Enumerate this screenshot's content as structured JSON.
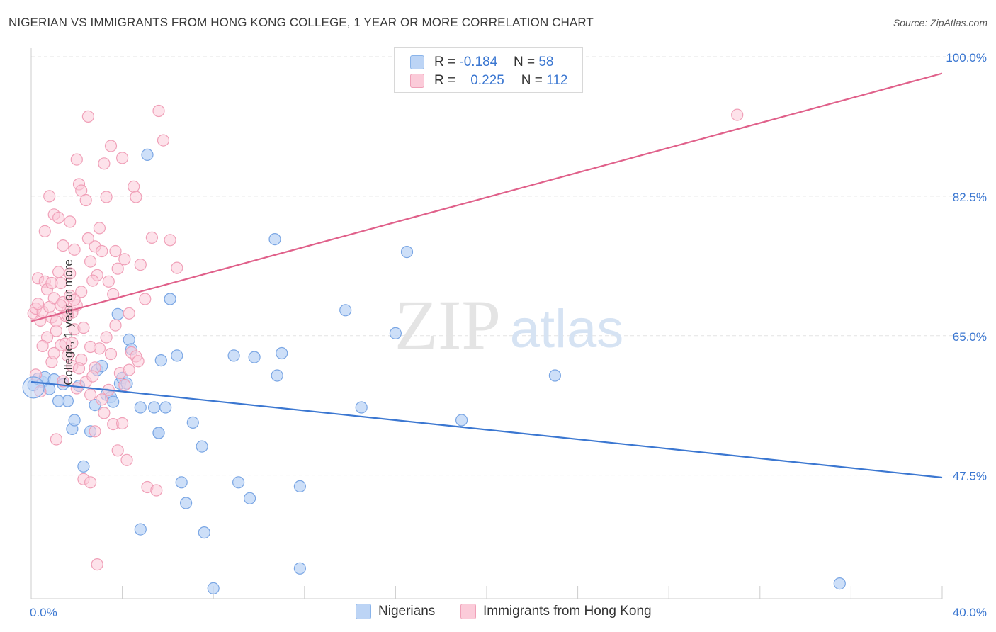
{
  "title": "NIGERIAN VS IMMIGRANTS FROM HONG KONG COLLEGE, 1 YEAR OR MORE CORRELATION CHART",
  "source": "Source: ZipAtlas.com",
  "watermark": {
    "zip": "ZIP",
    "atlas": "atlas"
  },
  "legend_top": {
    "rows": [
      {
        "r_label": "R =",
        "r_value": "-0.184",
        "n_label": "N =",
        "n_value": "58",
        "color": "#8ab4ea",
        "fill": "#bcd4f5"
      },
      {
        "r_label": "R =",
        "r_value": "0.225",
        "n_label": "N =",
        "n_value": "112",
        "color": "#f0a0b8",
        "fill": "#fbcbd9"
      }
    ]
  },
  "legend_bottom": [
    {
      "label": "Nigerians",
      "fill": "#bcd4f5",
      "color": "#8ab4ea"
    },
    {
      "label": "Immigrants from Hong Kong",
      "fill": "#fbcbd9",
      "color": "#f0a0b8"
    }
  ],
  "chart_data": {
    "type": "scatter",
    "title": "NIGERIAN VS IMMIGRANTS FROM HONG KONG COLLEGE, 1 YEAR OR MORE CORRELATION CHART",
    "xlabel": "",
    "ylabel": "College, 1 year or more",
    "xlim": [
      0,
      40
    ],
    "ylim": [
      32,
      100
    ],
    "x_tick_labels": [
      {
        "value": 0,
        "label": "0.0%"
      },
      {
        "value": 40,
        "label": "40.0%"
      }
    ],
    "y_tick_labels": [
      {
        "value": 100,
        "label": "100.0%"
      },
      {
        "value": 82.5,
        "label": "82.5%"
      },
      {
        "value": 65,
        "label": "65.0%"
      },
      {
        "value": 47.5,
        "label": "47.5%"
      }
    ],
    "grid": true,
    "series": [
      {
        "name": "Nigerians",
        "color": "#3b77d1",
        "fill": "#bcd4f5",
        "stroke": "#7aa6e4",
        "trend": {
          "x": [
            0,
            40
          ],
          "y": [
            59.2,
            47.2
          ]
        },
        "points": [
          [
            0.1,
            58.8
          ],
          [
            0.3,
            59.6
          ],
          [
            0.5,
            59.2
          ],
          [
            0.6,
            59.8
          ],
          [
            0.8,
            58.3
          ],
          [
            1.0,
            59.5
          ],
          [
            1.4,
            58.9
          ],
          [
            1.6,
            56.8
          ],
          [
            1.8,
            53.3
          ],
          [
            1.9,
            54.4
          ],
          [
            2.1,
            58.7
          ],
          [
            2.3,
            48.6
          ],
          [
            2.6,
            53.0
          ],
          [
            2.8,
            56.3
          ],
          [
            2.9,
            60.7
          ],
          [
            3.1,
            61.2
          ],
          [
            3.3,
            57.6
          ],
          [
            3.5,
            57.3
          ],
          [
            3.6,
            56.7
          ],
          [
            3.8,
            67.7
          ],
          [
            3.9,
            59.0
          ],
          [
            4.0,
            59.7
          ],
          [
            4.2,
            59.0
          ],
          [
            4.3,
            64.5
          ],
          [
            4.4,
            63.3
          ],
          [
            4.8,
            56.0
          ],
          [
            5.1,
            87.7
          ],
          [
            5.4,
            56.0
          ],
          [
            5.6,
            52.8
          ],
          [
            5.7,
            61.9
          ],
          [
            5.9,
            56.0
          ],
          [
            6.1,
            69.6
          ],
          [
            6.4,
            62.5
          ],
          [
            6.6,
            46.6
          ],
          [
            6.8,
            44.0
          ],
          [
            7.1,
            54.1
          ],
          [
            7.5,
            51.1
          ],
          [
            7.6,
            40.3
          ],
          [
            8.0,
            33.3
          ],
          [
            8.9,
            62.5
          ],
          [
            9.1,
            46.6
          ],
          [
            9.6,
            44.6
          ],
          [
            9.8,
            62.3
          ],
          [
            10.7,
            77.1
          ],
          [
            10.8,
            60.0
          ],
          [
            11.0,
            62.8
          ],
          [
            11.8,
            46.1
          ],
          [
            11.8,
            35.8
          ],
          [
            13.8,
            68.2
          ],
          [
            14.5,
            56.0
          ],
          [
            16.0,
            65.3
          ],
          [
            16.5,
            75.5
          ],
          [
            18.9,
            54.4
          ],
          [
            23.0,
            60.0
          ],
          [
            1.2,
            56.8
          ],
          [
            4.8,
            40.7
          ],
          [
            5.6,
            52.8
          ],
          [
            35.5,
            33.9
          ]
        ]
      },
      {
        "name": "Immigrants from Hong Kong",
        "color": "#e0608a",
        "fill": "#fbcbd9",
        "stroke": "#f0a0b8",
        "trend": {
          "x": [
            0,
            40
          ],
          "y": [
            66.8,
            97.9
          ]
        },
        "points": [
          [
            0.1,
            67.8
          ],
          [
            0.2,
            68.4
          ],
          [
            0.3,
            72.2
          ],
          [
            0.4,
            66.9
          ],
          [
            0.5,
            68.0
          ],
          [
            0.6,
            71.8
          ],
          [
            0.7,
            70.8
          ],
          [
            0.8,
            68.6
          ],
          [
            0.9,
            67.3
          ],
          [
            1.0,
            69.7
          ],
          [
            1.1,
            65.6
          ],
          [
            1.2,
            73.0
          ],
          [
            1.3,
            71.6
          ],
          [
            1.4,
            69.2
          ],
          [
            1.5,
            67.5
          ],
          [
            1.6,
            68.1
          ],
          [
            1.7,
            70.0
          ],
          [
            1.8,
            67.9
          ],
          [
            1.9,
            65.8
          ],
          [
            2.0,
            68.8
          ],
          [
            0.6,
            78.1
          ],
          [
            0.8,
            82.5
          ],
          [
            1.0,
            80.2
          ],
          [
            1.2,
            79.8
          ],
          [
            1.4,
            76.3
          ],
          [
            1.7,
            79.3
          ],
          [
            1.9,
            75.8
          ],
          [
            2.1,
            84.0
          ],
          [
            2.2,
            83.2
          ],
          [
            2.4,
            82.0
          ],
          [
            2.6,
            74.3
          ],
          [
            2.8,
            76.2
          ],
          [
            2.9,
            72.6
          ],
          [
            3.0,
            78.5
          ],
          [
            3.1,
            75.6
          ],
          [
            3.3,
            82.4
          ],
          [
            3.4,
            71.8
          ],
          [
            3.5,
            88.8
          ],
          [
            3.6,
            70.2
          ],
          [
            3.7,
            75.6
          ],
          [
            3.8,
            73.4
          ],
          [
            4.0,
            87.3
          ],
          [
            4.1,
            74.6
          ],
          [
            4.3,
            67.8
          ],
          [
            4.5,
            83.7
          ],
          [
            4.6,
            82.4
          ],
          [
            4.8,
            73.9
          ],
          [
            5.0,
            69.6
          ],
          [
            5.3,
            77.3
          ],
          [
            5.6,
            93.2
          ],
          [
            5.8,
            89.5
          ],
          [
            6.1,
            77.0
          ],
          [
            6.4,
            73.5
          ],
          [
            2.0,
            87.1
          ],
          [
            2.5,
            92.5
          ],
          [
            3.2,
            86.6
          ],
          [
            1.3,
            63.8
          ],
          [
            1.6,
            62.5
          ],
          [
            1.8,
            61.2
          ],
          [
            2.2,
            62.0
          ],
          [
            2.4,
            59.2
          ],
          [
            2.6,
            57.6
          ],
          [
            2.8,
            61.0
          ],
          [
            3.0,
            63.4
          ],
          [
            3.3,
            64.8
          ],
          [
            3.5,
            62.7
          ],
          [
            3.6,
            53.9
          ],
          [
            3.8,
            50.6
          ],
          [
            4.0,
            54.0
          ],
          [
            4.2,
            49.4
          ],
          [
            4.4,
            62.9
          ],
          [
            4.6,
            62.4
          ],
          [
            2.3,
            47.0
          ],
          [
            2.6,
            46.6
          ],
          [
            2.8,
            53.0
          ],
          [
            3.1,
            57.0
          ],
          [
            5.1,
            46.0
          ],
          [
            5.5,
            45.6
          ],
          [
            1.1,
            52.0
          ],
          [
            0.9,
            61.7
          ],
          [
            0.4,
            58.0
          ],
          [
            0.2,
            60.1
          ],
          [
            1.4,
            59.3
          ],
          [
            2.7,
            59.9
          ],
          [
            3.2,
            55.3
          ],
          [
            1.5,
            64.0
          ],
          [
            2.0,
            58.4
          ],
          [
            2.9,
            36.3
          ],
          [
            1.7,
            72.8
          ],
          [
            2.2,
            70.5
          ],
          [
            2.5,
            77.2
          ],
          [
            1.1,
            66.8
          ],
          [
            0.7,
            64.8
          ],
          [
            0.5,
            63.7
          ],
          [
            1.9,
            69.5
          ],
          [
            2.7,
            71.9
          ],
          [
            3.9,
            60.3
          ],
          [
            4.1,
            58.8
          ],
          [
            4.3,
            60.7
          ],
          [
            4.7,
            61.8
          ],
          [
            3.4,
            58.2
          ],
          [
            2.1,
            60.9
          ],
          [
            1.6,
            67.6
          ],
          [
            2.3,
            66.0
          ],
          [
            0.9,
            71.6
          ],
          [
            1.3,
            68.8
          ],
          [
            31.0,
            92.7
          ],
          [
            1.0,
            62.8
          ],
          [
            1.8,
            64.1
          ],
          [
            0.3,
            69.0
          ],
          [
            2.6,
            63.6
          ],
          [
            3.7,
            66.3
          ]
        ]
      }
    ]
  }
}
